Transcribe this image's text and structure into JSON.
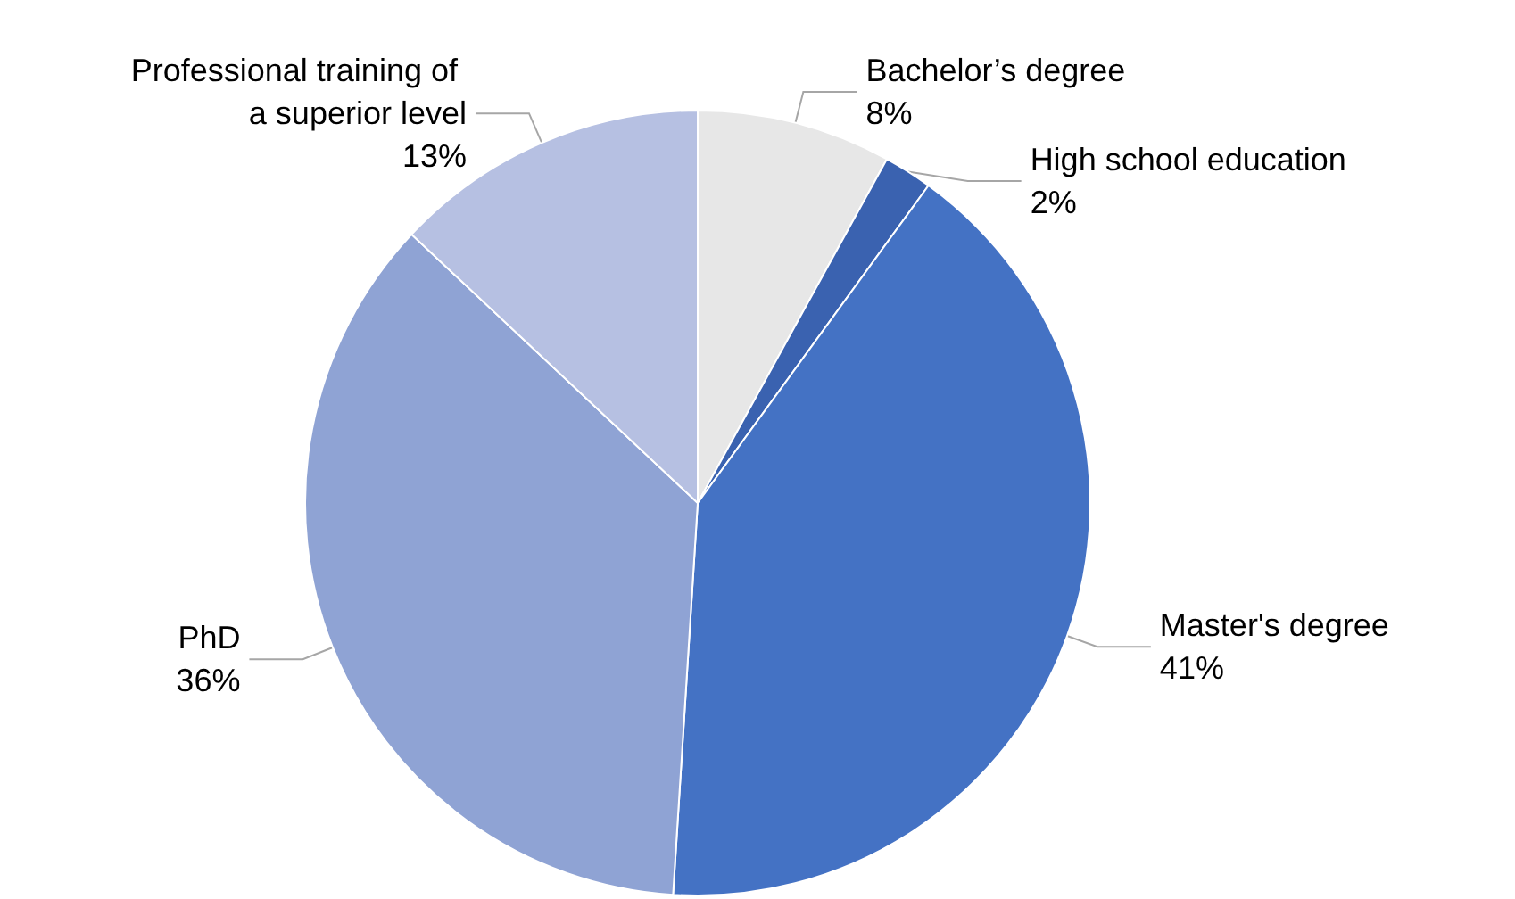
{
  "chart_data": {
    "type": "pie",
    "categories": [
      "Bachelor’s degree",
      "High school education",
      "Master's degree",
      "PhD",
      "Professional training of a superior level"
    ],
    "values": [
      8,
      2,
      41,
      36,
      13
    ],
    "colors": [
      "#e7e7e7",
      "#3a62b0",
      "#4472c4",
      "#8fa3d4",
      "#b6c0e2"
    ],
    "value_labels": [
      "8%",
      "2%",
      "41%",
      "36%",
      "13%"
    ],
    "legend": false
  }
}
